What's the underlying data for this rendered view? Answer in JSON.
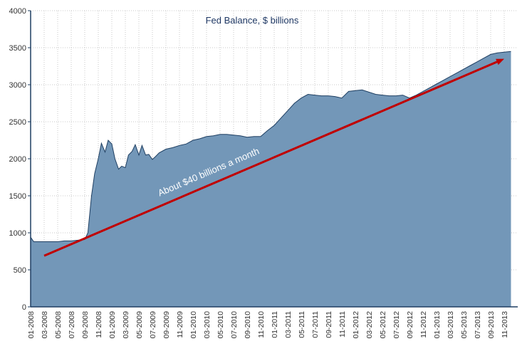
{
  "chart_data": {
    "type": "area",
    "title": "Fed Balance, $ billions",
    "xlabel": "",
    "ylabel": "",
    "ylim": [
      0,
      4000
    ],
    "yticks": [
      0,
      500,
      1000,
      1500,
      2000,
      2500,
      3000,
      3500,
      4000
    ],
    "xlim": [
      "2008-01",
      "2013-12"
    ],
    "xtick_labels": [
      "01-2008",
      "03-2008",
      "05-2008",
      "07-2008",
      "09-2008",
      "11-2008",
      "01-2009",
      "03-2009",
      "05-2009",
      "07-2009",
      "09-2009",
      "11-2009",
      "01-2010",
      "03-2010",
      "05-2010",
      "07-2010",
      "09-2010",
      "11-2010",
      "01-2011",
      "03-2011",
      "05-2011",
      "07-2011",
      "09-2011",
      "11-2011",
      "01-2012",
      "03-2012",
      "05-2012",
      "07-2012",
      "09-2012",
      "11-2012",
      "01-2013",
      "03-2013",
      "05-2013",
      "07-2013",
      "09-2013",
      "11-2013"
    ],
    "grid": true,
    "legend": "none",
    "colors": {
      "area_fill": "#7397b8",
      "area_line": "#1f3f62",
      "arrow": "#c00000",
      "grid": "#c8c8c8",
      "axis": "#1f3f62"
    },
    "series": [
      {
        "x": [
          "2008-01",
          "2008-01-15",
          "2008-02",
          "2008-03",
          "2008-04",
          "2008-05",
          "2008-06",
          "2008-07",
          "2008-08",
          "2008-09",
          "2008-09-15",
          "2008-10",
          "2008-10-15",
          "2008-11",
          "2008-11-15",
          "2008-12",
          "2008-12-15",
          "2009-01",
          "2009-01-15",
          "2009-02",
          "2009-02-15",
          "2009-03",
          "2009-03-15",
          "2009-04",
          "2009-04-15",
          "2009-05",
          "2009-05-15",
          "2009-06",
          "2009-06-15",
          "2009-07",
          "2009-07-15",
          "2009-08",
          "2009-09",
          "2009-10",
          "2009-11",
          "2009-12",
          "2010-01",
          "2010-02",
          "2010-03",
          "2010-04",
          "2010-05",
          "2010-06",
          "2010-07",
          "2010-08",
          "2010-09",
          "2010-10",
          "2010-11",
          "2010-12",
          "2011-01",
          "2011-02",
          "2011-03",
          "2011-04",
          "2011-05",
          "2011-06",
          "2011-07",
          "2011-08",
          "2011-09",
          "2011-10",
          "2011-11",
          "2011-12",
          "2012-01",
          "2012-02",
          "2012-03",
          "2012-04",
          "2012-05",
          "2012-06",
          "2012-07",
          "2012-08",
          "2012-09",
          "2012-10",
          "2012-11",
          "2012-12",
          "2013-01",
          "2013-02",
          "2013-03",
          "2013-04",
          "2013-05",
          "2013-06",
          "2013-07",
          "2013-08",
          "2013-09",
          "2013-10",
          "2013-11",
          "2013-12"
        ],
        "values": [
          940,
          880,
          880,
          880,
          880,
          880,
          890,
          890,
          900,
          910,
          1000,
          1500,
          1800,
          2000,
          2210,
          2090,
          2250,
          2200,
          2000,
          1860,
          1900,
          1880,
          2050,
          2100,
          2190,
          2050,
          2180,
          2050,
          2060,
          1990,
          2030,
          2080,
          2130,
          2150,
          2180,
          2200,
          2250,
          2270,
          2300,
          2310,
          2330,
          2330,
          2320,
          2310,
          2290,
          2300,
          2300,
          2380,
          2450,
          2550,
          2650,
          2750,
          2820,
          2870,
          2860,
          2850,
          2850,
          2840,
          2820,
          2910,
          2920,
          2930,
          2900,
          2870,
          2860,
          2850,
          2850,
          2860,
          2820,
          2860,
          2910,
          2960,
          3010,
          3060,
          3110,
          3160,
          3210,
          3260,
          3310,
          3360,
          3410,
          3430,
          3440,
          3450
        ]
      }
    ],
    "annotations": [
      {
        "text": "About $40 billions a month",
        "type": "arrow",
        "from": [
          "2008-03",
          690
        ],
        "to": [
          "2013-11",
          3350
        ]
      }
    ]
  }
}
